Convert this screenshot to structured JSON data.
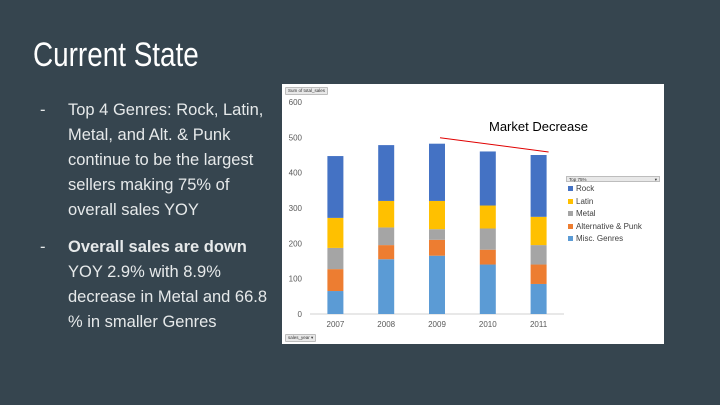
{
  "slide": {
    "title": "Current State",
    "bullets": [
      {
        "dash": "-",
        "bold": "",
        "text": "Top 4 Genres: Rock, Latin, Metal, and Alt. & Punk continue to be the largest sellers making 75% of overall sales YOY"
      },
      {
        "dash": "-",
        "bold": "Overall sales are down",
        "text": " YOY 2.9% with 8.9% decrease in Metal and 66.8 % in smaller Genres"
      }
    ]
  },
  "pivot": {
    "value_field": "Sum of total_sales",
    "filter_field": "Top 75%",
    "axis_field": "sales_year",
    "dropdown_glyph": "▾"
  },
  "annotation": "Market Decrease",
  "colors": {
    "rock": "#4472c4",
    "latin": "#ffc000",
    "metal": "#a5a5a5",
    "alt": "#ed7d31",
    "misc": "#5b9bd5",
    "trend_line": "#e00000"
  },
  "chart_data": {
    "type": "bar",
    "stacked": true,
    "categories": [
      "2007",
      "2008",
      "2009",
      "2010",
      "2011"
    ],
    "ylim": [
      0,
      600
    ],
    "yticks": [
      0,
      100,
      200,
      300,
      400,
      500,
      600
    ],
    "grid": false,
    "legend_position": "right",
    "series": [
      {
        "name": "Misc. Genres",
        "color_key": "misc",
        "values": [
          65,
          155,
          165,
          140,
          85
        ]
      },
      {
        "name": "Alternative & Punk",
        "color_key": "alt",
        "values": [
          62,
          40,
          45,
          42,
          55
        ]
      },
      {
        "name": "Metal",
        "color_key": "metal",
        "values": [
          60,
          50,
          30,
          60,
          55
        ]
      },
      {
        "name": "Latin",
        "color_key": "latin",
        "values": [
          85,
          75,
          80,
          65,
          80
        ]
      },
      {
        "name": "Rock",
        "color_key": "rock",
        "values": [
          175,
          158,
          162,
          153,
          175
        ]
      }
    ],
    "legend_order": [
      "Rock",
      "Latin",
      "Metal",
      "Alternative & Punk",
      "Misc. Genres"
    ]
  }
}
